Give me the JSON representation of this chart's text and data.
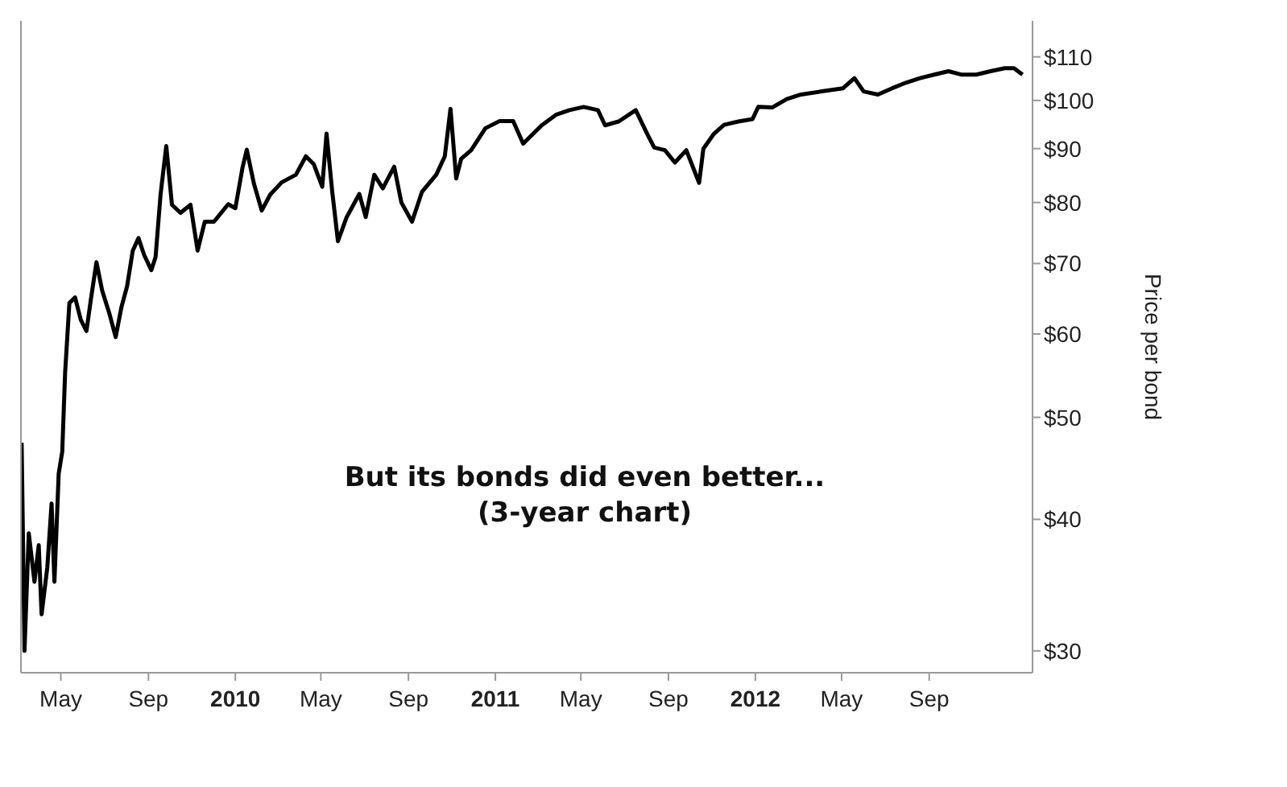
{
  "chart_data": {
    "type": "line",
    "y2label": "Price per bond",
    "annotations": [
      "But its bonds did even better...",
      "(3-year chart)"
    ],
    "x": [
      "2009-03-07",
      "2009-03-11",
      "2009-03-17",
      "2009-03-25",
      "2009-03-31",
      "2009-04-04",
      "2009-04-12",
      "2009-04-18",
      "2009-04-22",
      "2009-04-28",
      "2009-05-03",
      "2009-05-07",
      "2009-05-13",
      "2009-05-21",
      "2009-05-29",
      "2009-06-06",
      "2009-06-12",
      "2009-06-20",
      "2009-06-28",
      "2009-07-08",
      "2009-07-17",
      "2009-07-25",
      "2009-08-02",
      "2009-08-10",
      "2009-08-18",
      "2009-08-26",
      "2009-09-05",
      "2009-09-11",
      "2009-09-18",
      "2009-09-26",
      "2009-10-04",
      "2009-10-16",
      "2009-10-30",
      "2009-11-09",
      "2009-11-19",
      "2009-12-02",
      "2009-12-22",
      "2010-01-01",
      "2010-01-11",
      "2010-01-17",
      "2010-01-27",
      "2010-02-07",
      "2010-02-19",
      "2010-03-07",
      "2010-03-27",
      "2010-04-10",
      "2010-04-21",
      "2010-05-03",
      "2010-05-09",
      "2010-05-17",
      "2010-05-25",
      "2010-06-06",
      "2010-06-24",
      "2010-07-03",
      "2010-07-15",
      "2010-07-27",
      "2010-08-02",
      "2010-08-12",
      "2010-08-22",
      "2010-09-06",
      "2010-09-20",
      "2010-10-10",
      "2010-10-22",
      "2010-10-30",
      "2010-11-07",
      "2010-11-14",
      "2010-11-28",
      "2010-12-18",
      "2011-01-07",
      "2011-01-26",
      "2011-02-09",
      "2011-03-07",
      "2011-03-27",
      "2011-04-15",
      "2011-05-05",
      "2011-05-25",
      "2011-06-04",
      "2011-06-23",
      "2011-07-17",
      "2011-08-02",
      "2011-08-12",
      "2011-08-27",
      "2011-09-10",
      "2011-09-26",
      "2011-10-14",
      "2011-10-20",
      "2011-11-04",
      "2011-11-18",
      "2011-12-08",
      "2011-12-28",
      "2012-01-05",
      "2012-01-25",
      "2012-02-14",
      "2012-03-05",
      "2012-04-03",
      "2012-05-03",
      "2012-05-19",
      "2012-06-01",
      "2012-06-21",
      "2012-07-11",
      "2012-07-31",
      "2012-08-19",
      "2012-09-08",
      "2012-09-28",
      "2012-10-17",
      "2012-11-06",
      "2012-11-26",
      "2012-12-16",
      "2012-12-29",
      "2013-01-10"
    ],
    "series": [
      {
        "color": "#000000",
        "axis": "y2",
        "values": [
          47.3,
          30,
          38.8,
          34.9,
          37.8,
          32.5,
          36,
          41.4,
          34.9,
          44.2,
          46.4,
          55.1,
          64.2,
          65,
          61.9,
          60.4,
          64.6,
          70.2,
          66,
          62.8,
          59.6,
          63.6,
          66.6,
          72,
          74,
          71.3,
          69,
          71,
          81.4,
          90.5,
          79.6,
          78.2,
          79.6,
          72,
          76.7,
          76.7,
          79.7,
          79,
          86.3,
          89.8,
          83.4,
          78.6,
          81.4,
          83.6,
          85,
          88.5,
          87,
          82.8,
          93,
          81.9,
          73.5,
          77.4,
          81.5,
          77.5,
          85,
          82.5,
          84,
          86.5,
          80,
          76.7,
          81.9,
          85,
          88.5,
          98.2,
          84.3,
          88,
          89.7,
          94.1,
          95.6,
          95.6,
          91,
          94.7,
          96.9,
          97.9,
          98.6,
          97.9,
          94.7,
          95.5,
          97.9,
          93,
          90.2,
          89.7,
          87.3,
          89.7,
          83.5,
          90,
          93,
          94.8,
          95.5,
          96,
          98.6,
          98.5,
          100.3,
          101.3,
          102,
          102.7,
          105,
          102,
          101.3,
          102.7,
          104,
          105,
          105.8,
          106.6,
          105.8,
          105.8,
          106.6,
          107.3,
          107.3,
          105.8
        ]
      }
    ],
    "xlim": [
      "2009-03-06",
      "2013-01-24"
    ],
    "xticks": [
      {
        "value": "2009-05-01",
        "label": "May"
      },
      {
        "value": "2009-09-01",
        "label": "Sep"
      },
      {
        "value": "2010-01-01",
        "label": "2010"
      },
      {
        "value": "2010-05-01",
        "label": "May"
      },
      {
        "value": "2010-09-01",
        "label": "Sep"
      },
      {
        "value": "2011-01-01",
        "label": "2011"
      },
      {
        "value": "2011-05-01",
        "label": "May"
      },
      {
        "value": "2011-09-01",
        "label": "Sep"
      },
      {
        "value": "2012-01-01",
        "label": "2012"
      },
      {
        "value": "2012-05-01",
        "label": "May"
      },
      {
        "value": "2012-09-01",
        "label": "Sep"
      }
    ],
    "y2lim": [
      28.6,
      119
    ],
    "y2ticks": [
      {
        "value": 30,
        "label": "$30"
      },
      {
        "value": 40,
        "label": "$40"
      },
      {
        "value": 50,
        "label": "$50"
      },
      {
        "value": 60,
        "label": "$60"
      },
      {
        "value": 70,
        "label": "$70"
      },
      {
        "value": 80,
        "label": "$80"
      },
      {
        "value": 90,
        "label": "$90"
      },
      {
        "value": 100,
        "label": "$100"
      },
      {
        "value": 110,
        "label": "$110"
      }
    ],
    "log": "y2",
    "grid": false,
    "legend": false,
    "line_style": "solid",
    "marker": "none"
  }
}
